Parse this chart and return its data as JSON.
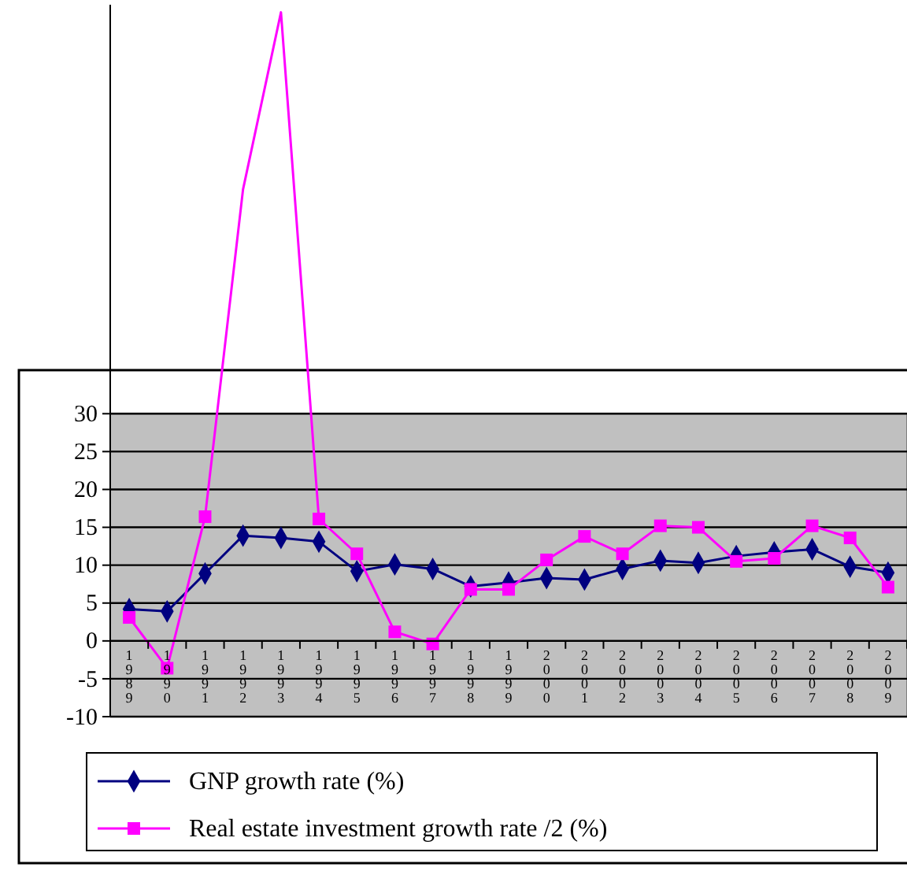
{
  "chart_data": {
    "type": "line",
    "categories": [
      "1989",
      "1990",
      "1991",
      "1992",
      "1993",
      "1994",
      "1995",
      "1996",
      "1997",
      "1998",
      "1999",
      "2000",
      "2001",
      "2002",
      "2003",
      "2004",
      "2005",
      "2006",
      "2007",
      "2008",
      "2009"
    ],
    "series": [
      {
        "name": "GNP growth rate (%)",
        "color": "#000080",
        "marker": "diamond",
        "values": [
          4.2,
          3.9,
          8.9,
          13.9,
          13.6,
          13.1,
          9.2,
          10.1,
          9.5,
          7.2,
          7.7,
          8.3,
          8.1,
          9.5,
          10.6,
          10.3,
          11.2,
          11.7,
          12.1,
          9.8,
          9.0
        ]
      },
      {
        "name": "Real estate investment growth rate /2 (%)",
        "color": "#ff00ff",
        "marker": "square",
        "values": [
          3.1,
          -3.6,
          16.4,
          59.6,
          83,
          16.1,
          11.5,
          1.2,
          -0.4,
          6.8,
          6.8,
          10.7,
          13.8,
          11.5,
          15.2,
          15.0,
          10.5,
          10.9,
          15.2,
          13.6,
          7.1
        ]
      }
    ],
    "ylim": [
      -10,
      84
    ],
    "yticks": [
      -10,
      -5,
      0,
      5,
      10,
      15,
      20,
      25,
      30
    ],
    "grid": "y",
    "legend": "bottom"
  }
}
